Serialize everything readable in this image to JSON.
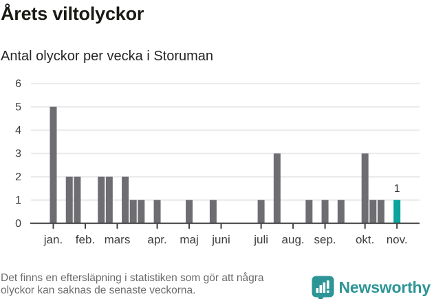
{
  "header": {
    "title": "Årets viltolyckor",
    "subtitle": "Antal olyckor per vecka i Storuman"
  },
  "chart_data": {
    "type": "bar",
    "title": "Årets viltolyckor",
    "subtitle": "Antal olyckor per vecka i Storuman",
    "xlabel": "",
    "ylabel": "",
    "ylim": [
      0,
      6
    ],
    "y_ticks": [
      0,
      1,
      2,
      3,
      4,
      5,
      6
    ],
    "grid": true,
    "unit": "vecka",
    "weekly_values": [
      5,
      0,
      2,
      2,
      0,
      0,
      2,
      2,
      0,
      2,
      1,
      1,
      0,
      1,
      0,
      0,
      0,
      1,
      0,
      0,
      1,
      0,
      0,
      0,
      0,
      0,
      1,
      0,
      3,
      0,
      0,
      0,
      1,
      0,
      1,
      0,
      1,
      0,
      0,
      3,
      1,
      1,
      0,
      1,
      0
    ],
    "highlight_index": 43,
    "highlight_value_label": "1",
    "month_ticks": [
      {
        "label": "jan.",
        "week": 0
      },
      {
        "label": "feb.",
        "week": 4
      },
      {
        "label": "mars",
        "week": 8
      },
      {
        "label": "apr.",
        "week": 13
      },
      {
        "label": "maj",
        "week": 17
      },
      {
        "label": "juni",
        "week": 21
      },
      {
        "label": "juli",
        "week": 26
      },
      {
        "label": "aug.",
        "week": 30
      },
      {
        "label": "sep.",
        "week": 34
      },
      {
        "label": "okt.",
        "week": 39
      },
      {
        "label": "nov.",
        "week": 43
      }
    ],
    "colors": {
      "bar": "#6e6e72",
      "highlight_bar": "#0aa39e",
      "gridline": "#e9e9e9",
      "axis": "#404040",
      "tick_label": "#3d3d3d",
      "annotation": "#333333"
    }
  },
  "footer": {
    "disclaimer_lines": [
      "Det finns en eftersläpning i statistiken som gör att några",
      "olyckor kan saknas de senaste veckorna."
    ],
    "brand": "Newsworthy",
    "brand_color": "#2e9596"
  }
}
